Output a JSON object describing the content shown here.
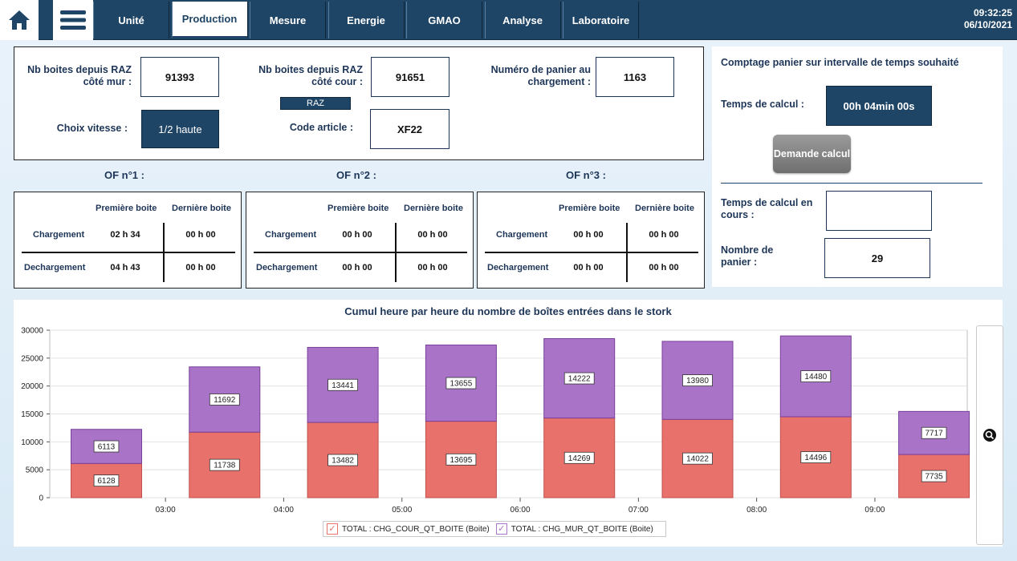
{
  "nav": {
    "tabs": [
      {
        "label": "Unité",
        "active": false
      },
      {
        "label": "Production",
        "active": true
      },
      {
        "label": "Mesure",
        "active": false
      },
      {
        "label": "Energie",
        "active": false
      },
      {
        "label": "GMAO",
        "active": false
      },
      {
        "label": "Analyse",
        "active": false
      },
      {
        "label": "Laboratoire",
        "active": false
      }
    ],
    "time": "09:32:25",
    "date": "06/10/2021"
  },
  "counters": {
    "mur_label": "Nb boites depuis RAZ côté mur :",
    "mur_value": "91393",
    "cour_label": "Nb boites depuis RAZ côté cour :",
    "cour_value": "91651",
    "raz_label": "RAZ",
    "panier_label": "Numéro de panier au chargement :",
    "panier_value": "1163",
    "vitesse_label": "Choix vitesse :",
    "vitesse_value": "1/2 haute",
    "article_label": "Code article :",
    "article_value": "XF22"
  },
  "of": [
    {
      "title": "OF n°1 :",
      "col1": "Première boite",
      "col2": "Dernière boite",
      "row1": "Chargement",
      "row2": "Dechargement",
      "c1": "02 h 34",
      "c2": "00 h 00",
      "d1": "04 h 43",
      "d2": "00 h 00"
    },
    {
      "title": "OF n°2 :",
      "col1": "Première boite",
      "col2": "Dernière boite",
      "row1": "Chargement",
      "row2": "Dechargement",
      "c1": "00 h 00",
      "c2": "00 h 00",
      "d1": "00 h 00",
      "d2": "00 h 00"
    },
    {
      "title": "OF n°3 :",
      "col1": "Première boite",
      "col2": "Dernière boite",
      "row1": "Chargement",
      "row2": "Dechargement",
      "c1": "00 h 00",
      "c2": "00 h 00",
      "d1": "00 h 00",
      "d2": "00 h 00"
    }
  ],
  "comptage": {
    "title": "Comptage panier sur intervalle de temps souhaité",
    "temps_label": "Temps de calcul :",
    "temps_value": "00h 04min 00s",
    "button": "Demande calcul",
    "encours_label": "Temps de calcul en cours :",
    "encours_value": "",
    "nombre_label": "Nombre de panier :",
    "nombre_value": "29"
  },
  "chart_data": {
    "type": "bar",
    "stacked": true,
    "title": "Cumul heure par heure du nombre de boîtes entrées dans le stork",
    "x_ticks": [
      "03:00",
      "04:00",
      "05:00",
      "06:00",
      "07:00",
      "08:00",
      "09:00"
    ],
    "y_ticks": [
      "0",
      "5000",
      "10000",
      "15000",
      "20000",
      "25000",
      "30000"
    ],
    "ylim": [
      0,
      30000
    ],
    "grid": true,
    "series": [
      {
        "name": "TOTAL : CHG_COUR_QT_BOITE (Boite)",
        "color": "#e8716b",
        "values": [
          6128,
          11738,
          13482,
          13695,
          14269,
          14022,
          14496,
          7735
        ]
      },
      {
        "name": "TOTAL : CHG_MUR_QT_BOITE (Boite)",
        "color": "#a974c8",
        "values": [
          6113,
          11692,
          13441,
          13655,
          14222,
          13980,
          14480,
          7717
        ]
      }
    ],
    "legend_position": "bottom"
  },
  "colors": {
    "nav": "#1f4566",
    "accent": "#1d3557"
  },
  "icons": {
    "home": "home-icon",
    "menu": "hamburger-icon",
    "zoom": "zoom-icon"
  }
}
